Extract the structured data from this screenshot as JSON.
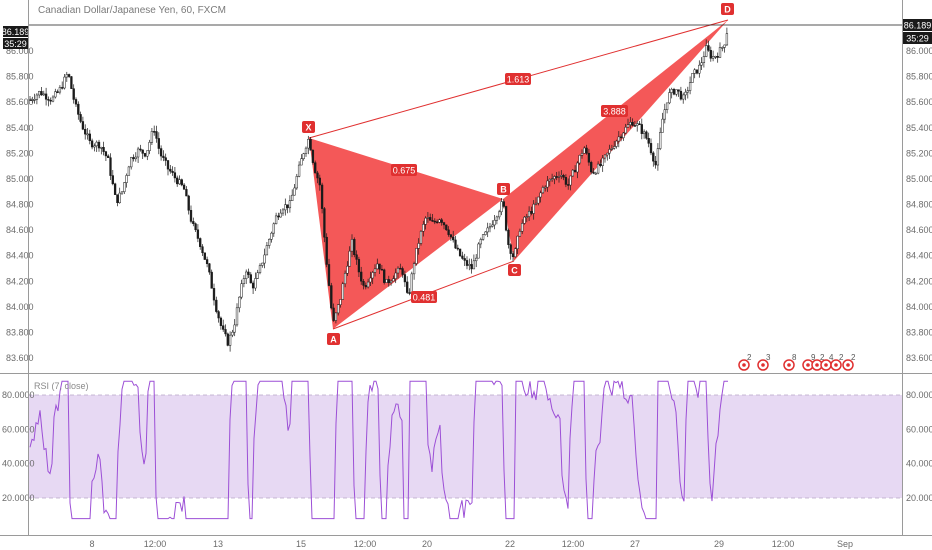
{
  "header": {
    "title": "Canadian Dollar/Japanese Yen, 60, FXCM"
  },
  "price_badge": {
    "price": "86.189",
    "countdown": "35:29"
  },
  "rsi_panel": {
    "label": "RSI (7, close)"
  },
  "colors": {
    "pattern_fill": "#f23b3b",
    "pattern_line": "#e03030",
    "candle": "#1a1a1a",
    "rsi_line": "#9c4fd6",
    "rsi_band": "#e7d9f3",
    "badge_bg": "#1a1a1a"
  },
  "chart_data": [
    {
      "type": "candlestick",
      "title": "Canadian Dollar/Japanese Yen, 60, FXCM",
      "ylim": [
        83.5,
        86.3
      ],
      "y_ticks": [
        "83.600",
        "83.800",
        "84.000",
        "84.200",
        "84.400",
        "84.600",
        "84.800",
        "85.000",
        "85.200",
        "85.400",
        "85.600",
        "85.800",
        "86.000"
      ],
      "x_ticks": [
        "8",
        "12:00",
        "13",
        "15",
        "12:00",
        "20",
        "22",
        "12:00",
        "27",
        "29",
        "12:00",
        "Sep"
      ],
      "last_price": 86.189,
      "harmonic_pattern": {
        "points": [
          {
            "label": "X",
            "price": 85.32
          },
          {
            "label": "A",
            "price": 83.84
          },
          {
            "label": "B",
            "price": 84.83
          },
          {
            "label": "C",
            "price": 84.37
          },
          {
            "label": "D",
            "price": 86.19
          }
        ],
        "ratios": [
          {
            "label": "0.675",
            "between": "XA-B"
          },
          {
            "label": "0.481",
            "between": "AB-C"
          },
          {
            "label": "3.888",
            "between": "BC-D"
          },
          {
            "label": "1.613",
            "between": "XA-D"
          }
        ]
      },
      "event_markers": [
        "2",
        "3",
        "8",
        "9",
        "2",
        "4",
        "2",
        "2"
      ]
    },
    {
      "type": "line",
      "title": "RSI (7, close)",
      "ylim": [
        0,
        100
      ],
      "y_ticks": [
        "20.0000",
        "40.0000",
        "60.0000",
        "80.0000"
      ],
      "band": [
        20,
        80
      ]
    }
  ]
}
